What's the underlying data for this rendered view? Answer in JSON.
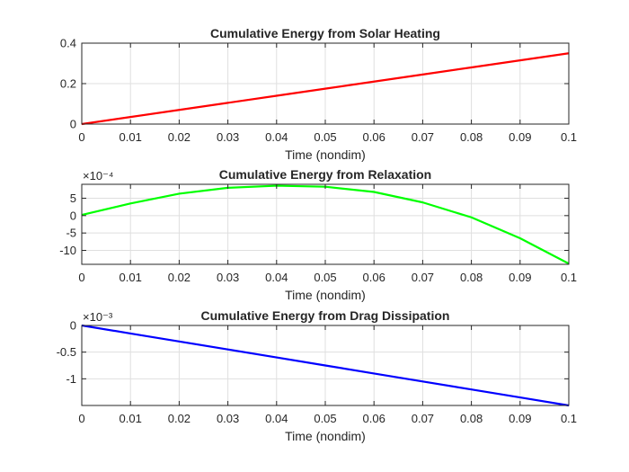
{
  "chart_data": [
    {
      "type": "line",
      "title": "Cumulative Energy from Solar Heating",
      "xlabel": "Time (nondim)",
      "ylabel": "",
      "exponent_label": "",
      "xlim": [
        0,
        0.1
      ],
      "ylim": [
        0,
        0.4
      ],
      "xticks": [
        0,
        0.01,
        0.02,
        0.03,
        0.04,
        0.05,
        0.06,
        0.07,
        0.08,
        0.09,
        0.1
      ],
      "xtick_labels": [
        "0",
        "0.01",
        "0.02",
        "0.03",
        "0.04",
        "0.05",
        "0.06",
        "0.07",
        "0.08",
        "0.09",
        "0.1"
      ],
      "yticks": [
        0,
        0.2,
        0.4
      ],
      "ytick_labels": [
        "0",
        "0.2",
        "0.4"
      ],
      "grid": true,
      "series": [
        {
          "color": "#ff0000",
          "x": [
            0,
            0.01,
            0.02,
            0.03,
            0.04,
            0.05,
            0.06,
            0.07,
            0.08,
            0.09,
            0.1
          ],
          "y": [
            0,
            0.035,
            0.07,
            0.105,
            0.14,
            0.175,
            0.21,
            0.245,
            0.28,
            0.315,
            0.35
          ]
        }
      ]
    },
    {
      "type": "line",
      "title": "Cumulative Energy from Relaxation",
      "xlabel": "Time (nondim)",
      "ylabel": "",
      "exponent_label": "×10⁻⁴",
      "xlim": [
        0,
        0.1
      ],
      "ylim": [
        -14,
        9
      ],
      "xticks": [
        0,
        0.01,
        0.02,
        0.03,
        0.04,
        0.05,
        0.06,
        0.07,
        0.08,
        0.09,
        0.1
      ],
      "xtick_labels": [
        "0",
        "0.01",
        "0.02",
        "0.03",
        "0.04",
        "0.05",
        "0.06",
        "0.07",
        "0.08",
        "0.09",
        "0.1"
      ],
      "yticks": [
        -10,
        -5,
        0,
        5
      ],
      "ytick_labels": [
        "-10",
        "-5",
        "0",
        "5"
      ],
      "grid": true,
      "series": [
        {
          "color": "#00ff00",
          "x": [
            0,
            0.01,
            0.02,
            0.03,
            0.04,
            0.05,
            0.06,
            0.07,
            0.08,
            0.09,
            0.1
          ],
          "y": [
            0.2,
            3.5,
            6.3,
            8.0,
            8.6,
            8.3,
            6.8,
            3.8,
            -0.5,
            -6.5,
            -13.8
          ]
        }
      ]
    },
    {
      "type": "line",
      "title": "Cumulative Energy from Drag Dissipation",
      "xlabel": "Time (nondim)",
      "ylabel": "",
      "exponent_label": "×10⁻³",
      "xlim": [
        0,
        0.1
      ],
      "ylim": [
        -1.5,
        0
      ],
      "xticks": [
        0,
        0.01,
        0.02,
        0.03,
        0.04,
        0.05,
        0.06,
        0.07,
        0.08,
        0.09,
        0.1
      ],
      "xtick_labels": [
        "0",
        "0.01",
        "0.02",
        "0.03",
        "0.04",
        "0.05",
        "0.06",
        "0.07",
        "0.08",
        "0.09",
        "0.1"
      ],
      "yticks": [
        -1,
        -0.5,
        0
      ],
      "ytick_labels": [
        "-1",
        "-0.5",
        "0"
      ],
      "grid": true,
      "series": [
        {
          "color": "#0000ff",
          "x": [
            0,
            0.01,
            0.02,
            0.03,
            0.04,
            0.05,
            0.06,
            0.07,
            0.08,
            0.09,
            0.1
          ],
          "y": [
            0,
            -0.15,
            -0.3,
            -0.45,
            -0.6,
            -0.75,
            -0.9,
            -1.05,
            -1.2,
            -1.35,
            -1.5
          ]
        }
      ]
    }
  ]
}
